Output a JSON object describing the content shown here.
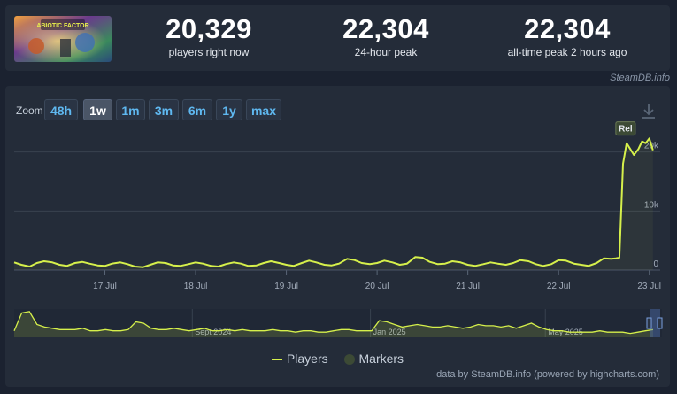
{
  "stats": [
    {
      "value": "20,329",
      "label": "players right now"
    },
    {
      "value": "22,304",
      "label": "24-hour peak"
    },
    {
      "value": "22,304",
      "label": "all-time peak 2 hours ago"
    }
  ],
  "thumbnail": {
    "text": "ABIOTIC FACTOR"
  },
  "credit_top": "SteamDB.info",
  "zoom": {
    "label": "Zoom",
    "buttons": [
      "48h",
      "1w",
      "1m",
      "3m",
      "6m",
      "1y",
      "max"
    ],
    "selected": "1w"
  },
  "legend": {
    "players": "Players",
    "markers": "Markers"
  },
  "credit_bottom": "data by SteamDB.info (powered by highcharts.com)",
  "colors": {
    "line": "#d6f04b",
    "background": "#1b2230",
    "panel": "#242c39",
    "accent": "#5fb8f0"
  },
  "chart_data": {
    "type": "line",
    "series": [
      {
        "name": "Players",
        "x": [
          16.0,
          16.08,
          16.17,
          16.25,
          16.33,
          16.42,
          16.5,
          16.58,
          16.67,
          16.75,
          16.83,
          16.92,
          17.0,
          17.08,
          17.17,
          17.25,
          17.33,
          17.42,
          17.5,
          17.58,
          17.67,
          17.75,
          17.83,
          17.92,
          18.0,
          18.08,
          18.17,
          18.25,
          18.33,
          18.42,
          18.5,
          18.58,
          18.67,
          18.75,
          18.83,
          18.92,
          19.0,
          19.08,
          19.17,
          19.25,
          19.33,
          19.42,
          19.5,
          19.58,
          19.67,
          19.75,
          19.83,
          19.92,
          20.0,
          20.08,
          20.17,
          20.25,
          20.33,
          20.42,
          20.5,
          20.58,
          20.67,
          20.75,
          20.83,
          20.92,
          21.0,
          21.08,
          21.17,
          21.25,
          21.33,
          21.42,
          21.5,
          21.58,
          21.67,
          21.75,
          21.83,
          21.92,
          22.0,
          22.08,
          22.17,
          22.25,
          22.33,
          22.42,
          22.5,
          22.58,
          22.63,
          22.67,
          22.71,
          22.75,
          22.79,
          22.83,
          22.88,
          22.92,
          22.96,
          23.0,
          23.04
        ],
        "y": [
          1300,
          900,
          600,
          1200,
          1500,
          1300,
          900,
          700,
          1200,
          1400,
          1100,
          800,
          700,
          1100,
          1300,
          1000,
          600,
          500,
          900,
          1300,
          1200,
          800,
          700,
          1000,
          1300,
          1100,
          700,
          600,
          1000,
          1300,
          1100,
          700,
          800,
          1200,
          1500,
          1200,
          900,
          700,
          1200,
          1600,
          1300,
          900,
          800,
          1100,
          1900,
          1700,
          1200,
          1000,
          1200,
          1600,
          1300,
          900,
          1100,
          2200,
          2100,
          1400,
          1000,
          1100,
          1500,
          1300,
          900,
          700,
          1000,
          1300,
          1100,
          900,
          1200,
          1700,
          1500,
          1000,
          700,
          1000,
          1700,
          1600,
          1100,
          900,
          700,
          1200,
          2000,
          1900,
          2000,
          2100,
          18000,
          21500,
          20500,
          19500,
          20500,
          21800,
          21500,
          22300,
          20300
        ]
      }
    ],
    "x_ticks": [
      "17 Jul",
      "18 Jul",
      "19 Jul",
      "20 Jul",
      "21 Jul",
      "22 Jul",
      "23 Jul"
    ],
    "y_ticks": [
      "0",
      "10k",
      "20k"
    ],
    "ylim": [
      0,
      24000
    ],
    "grid": true,
    "legend_position": "bottom-center",
    "flag": "Rel",
    "navigator": {
      "labels": [
        "Sept 2024",
        "Jan 2025",
        "May 2025"
      ],
      "values": [
        5,
        19,
        20,
        10,
        8,
        7,
        6,
        6,
        6,
        7,
        5,
        5,
        6,
        5,
        5,
        6,
        12,
        11,
        7,
        6,
        6,
        7,
        6,
        5,
        6,
        7,
        5,
        5,
        6,
        5,
        6,
        5,
        5,
        5,
        6,
        5,
        5,
        4,
        5,
        5,
        4,
        4,
        5,
        6,
        6,
        5,
        5,
        5,
        13,
        12,
        10,
        8,
        9,
        10,
        9,
        8,
        8,
        9,
        8,
        7,
        8,
        10,
        9,
        9,
        8,
        9,
        7,
        9,
        11,
        8,
        6,
        5,
        5,
        4,
        4,
        4,
        4,
        5,
        4,
        4,
        4,
        3,
        4,
        5,
        6
      ]
    }
  }
}
